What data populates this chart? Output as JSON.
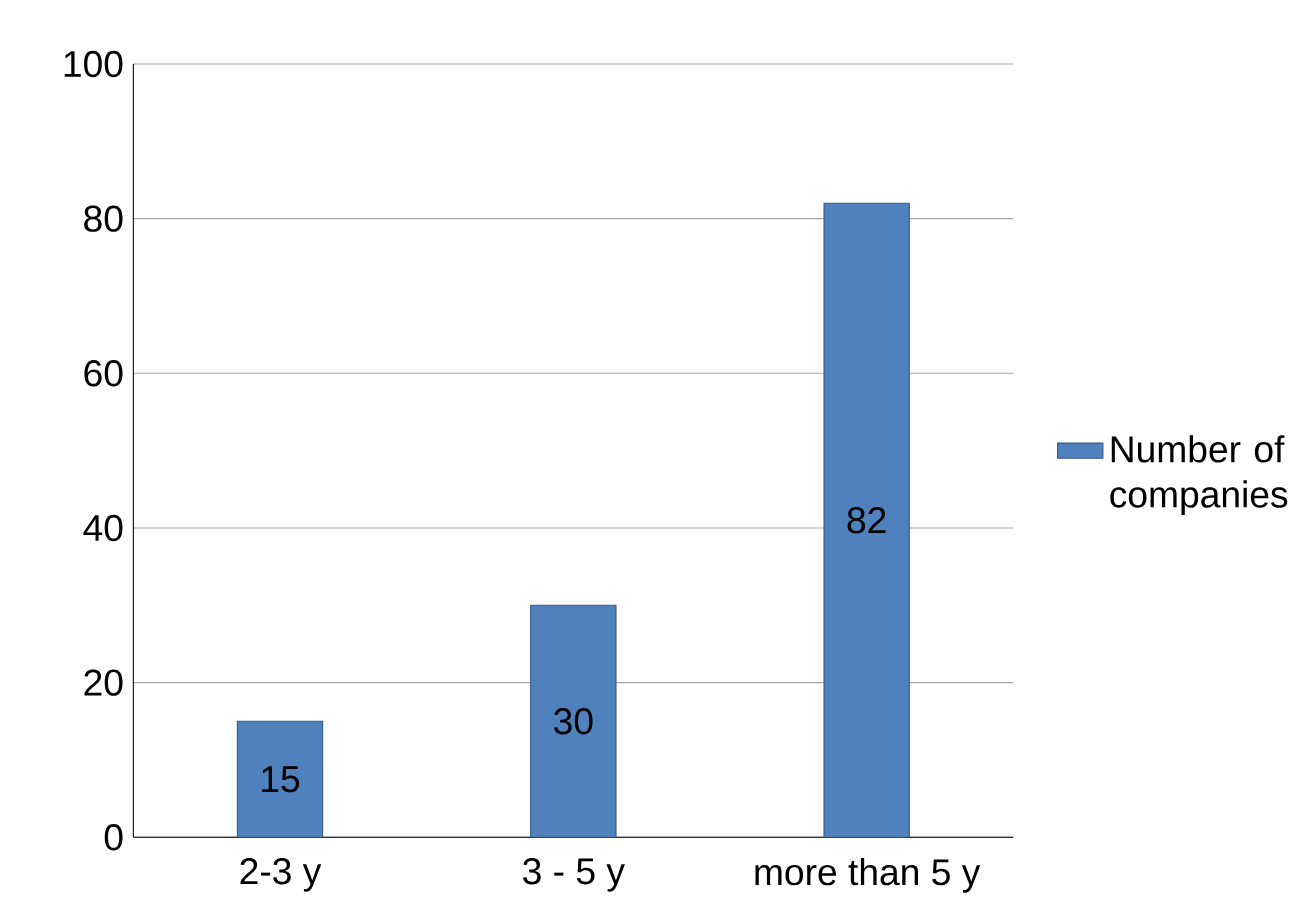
{
  "chart_data": {
    "type": "bar",
    "categories": [
      "2-3 y",
      "3 - 5 y",
      "more than 5 y"
    ],
    "series": [
      {
        "name": "Number of companies",
        "color": "#4f81bd",
        "values": [
          15,
          30,
          82
        ]
      }
    ],
    "ylim": [
      0,
      100
    ],
    "yticks": [
      0,
      20,
      40,
      60,
      80,
      100
    ],
    "grid": "y",
    "legend": "right",
    "data_labels": true
  }
}
